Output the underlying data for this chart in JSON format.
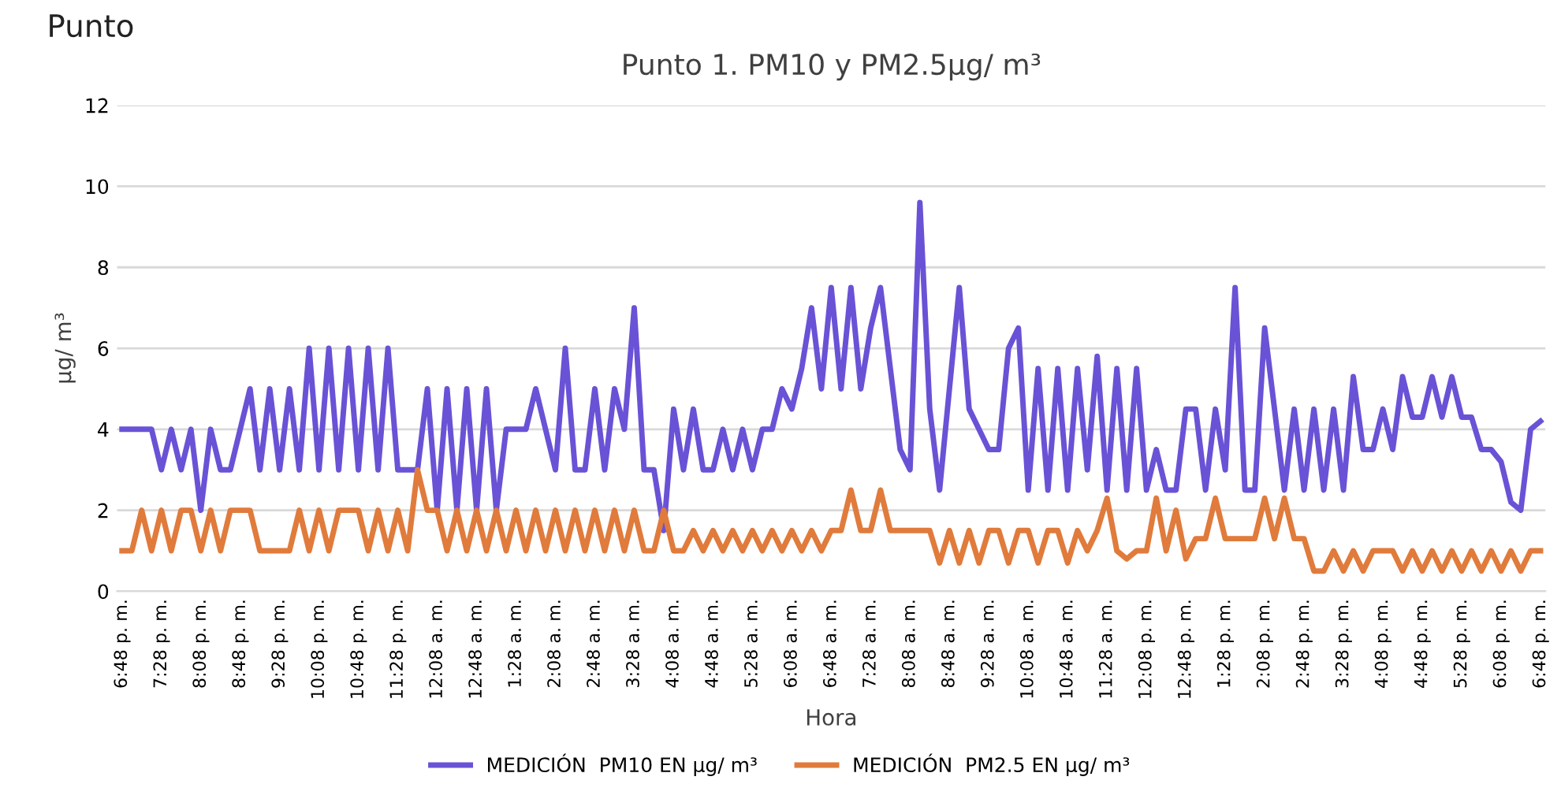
{
  "chart_data": {
    "type": "line",
    "title": "Punto 1. PM10 y PM2.5µg/ m³",
    "xlabel": "Hora",
    "ylabel": "µg/ m³",
    "annotations": [
      "Punto"
    ],
    "categories": [
      "6:48 p. m.",
      null,
      null,
      null,
      "7:28 p. m.",
      null,
      null,
      null,
      "8:08 p. m.",
      null,
      null,
      null,
      "8:48 p. m.",
      null,
      null,
      null,
      "9:28 p. m.",
      null,
      null,
      null,
      "10:08 p. m.",
      null,
      null,
      null,
      "10:48 p. m.",
      null,
      null,
      null,
      "11:28 p. m.",
      null,
      null,
      null,
      "12:08 a. m.",
      null,
      null,
      null,
      "12:48 a. m.",
      null,
      null,
      null,
      "1:28 a. m.",
      null,
      null,
      null,
      "2:08 a. m.",
      null,
      null,
      null,
      "2:48 a. m.",
      null,
      null,
      null,
      "3:28 a. m.",
      null,
      null,
      null,
      "4:08 a. m.",
      null,
      null,
      null,
      "4:48 a. m.",
      null,
      null,
      null,
      "5:28 a. m.",
      null,
      null,
      null,
      "6:08 a. m.",
      null,
      null,
      null,
      "6:48 a. m.",
      null,
      null,
      null,
      "7:28 a. m.",
      null,
      null,
      null,
      "8:08 a. m.",
      null,
      null,
      null,
      "8:48 a. m.",
      null,
      null,
      null,
      "9:28 a. m.",
      null,
      null,
      null,
      "10:08 a. m.",
      null,
      null,
      null,
      "10:48 a. m.",
      null,
      null,
      null,
      "11:28 a. m.",
      null,
      null,
      null,
      "12:08 p. m.",
      null,
      null,
      null,
      "12:48 p. m.",
      null,
      null,
      null,
      "1:28 p. m.",
      null,
      null,
      null,
      "2:08 p. m.",
      null,
      null,
      null,
      "2:48 p. m.",
      null,
      null,
      null,
      "3:28 p. m.",
      null,
      null,
      null,
      "4:08 p. m.",
      null,
      null,
      null,
      "4:48 p. m.",
      null,
      null,
      null,
      "5:28 p. m.",
      null,
      null,
      null,
      "6:08 p. m.",
      null,
      null,
      null,
      "6:48 p. m."
    ],
    "series": [
      {
        "name": "MEDICIÓN  PM10 EN µg/ m³",
        "color": "#6a52d6",
        "values": [
          4,
          4,
          4,
          4,
          3,
          4,
          3,
          4,
          2,
          4,
          3,
          3,
          4,
          5,
          3,
          5,
          3,
          5,
          3,
          6,
          3,
          6,
          3,
          6,
          3,
          6,
          3,
          6,
          3,
          3,
          3,
          5,
          2,
          5,
          2,
          5,
          2,
          5,
          2,
          4,
          4,
          4,
          5,
          4,
          3,
          6,
          3,
          3,
          5,
          3,
          5,
          4,
          7,
          3,
          3,
          1.5,
          4.5,
          3,
          4.5,
          3,
          3,
          4,
          3,
          4,
          3,
          4,
          4,
          5,
          4.5,
          5.5,
          7,
          5,
          7.5,
          5,
          7.5,
          5,
          6.5,
          7.5,
          5.5,
          3.5,
          3,
          9.6,
          4.5,
          2.5,
          5,
          7.5,
          4.5,
          4,
          3.5,
          3.5,
          6,
          6.5,
          2.5,
          5.5,
          2.5,
          5.5,
          2.5,
          5.5,
          3,
          5.8,
          2.5,
          5.5,
          2.5,
          5.5,
          2.5,
          3.5,
          2.5,
          2.5,
          4.5,
          4.5,
          2.5,
          4.5,
          3,
          7.5,
          2.5,
          2.5,
          6.5,
          4.5,
          2.5,
          4.5,
          2.5,
          4.5,
          2.5,
          4.5,
          2.5,
          5.3,
          3.5,
          3.5,
          4.5,
          3.5,
          5.3,
          4.3,
          4.3,
          5.3,
          4.3,
          5.3,
          4.3,
          4.3,
          3.5,
          3.5,
          3.2,
          2.2,
          2,
          4,
          4.2
        ]
      },
      {
        "name": "MEDICIÓN  PM2.5 EN µg/ m³",
        "color": "#e07b3c",
        "values": [
          1,
          1,
          2,
          1,
          2,
          1,
          2,
          2,
          1,
          2,
          1,
          2,
          2,
          2,
          1,
          1,
          1,
          1,
          2,
          1,
          2,
          1,
          2,
          2,
          2,
          1,
          2,
          1,
          2,
          1,
          3,
          2,
          2,
          1,
          2,
          1,
          2,
          1,
          2,
          1,
          2,
          1,
          2,
          1,
          2,
          1,
          2,
          1,
          2,
          1,
          2,
          1,
          2,
          1,
          1,
          2,
          1,
          1,
          1.5,
          1,
          1.5,
          1,
          1.5,
          1,
          1.5,
          1,
          1.5,
          1,
          1.5,
          1,
          1.5,
          1,
          1.5,
          1.5,
          2.5,
          1.5,
          1.5,
          2.5,
          1.5,
          1.5,
          1.5,
          1.5,
          1.5,
          0.7,
          1.5,
          0.7,
          1.5,
          0.7,
          1.5,
          1.5,
          0.7,
          1.5,
          1.5,
          0.7,
          1.5,
          1.5,
          0.7,
          1.5,
          1,
          1.5,
          2.3,
          1,
          0.8,
          1,
          1,
          2.3,
          1,
          2,
          0.8,
          1.3,
          1.3,
          2.3,
          1.3,
          1.3,
          1.3,
          1.3,
          2.3,
          1.3,
          2.3,
          1.3,
          1.3,
          0.5,
          0.5,
          1,
          0.5,
          1,
          0.5,
          1,
          1,
          1,
          0.5,
          1,
          0.5,
          1,
          0.5,
          1,
          0.5,
          1,
          0.5,
          1,
          0.5,
          1,
          0.5,
          1,
          1
        ]
      }
    ],
    "ylim": [
      0,
      12
    ],
    "yticks": [
      0,
      2,
      4,
      6,
      8,
      10,
      12
    ],
    "grid": "y",
    "legend": "bottom",
    "marker": "none",
    "line_style": "solid"
  }
}
